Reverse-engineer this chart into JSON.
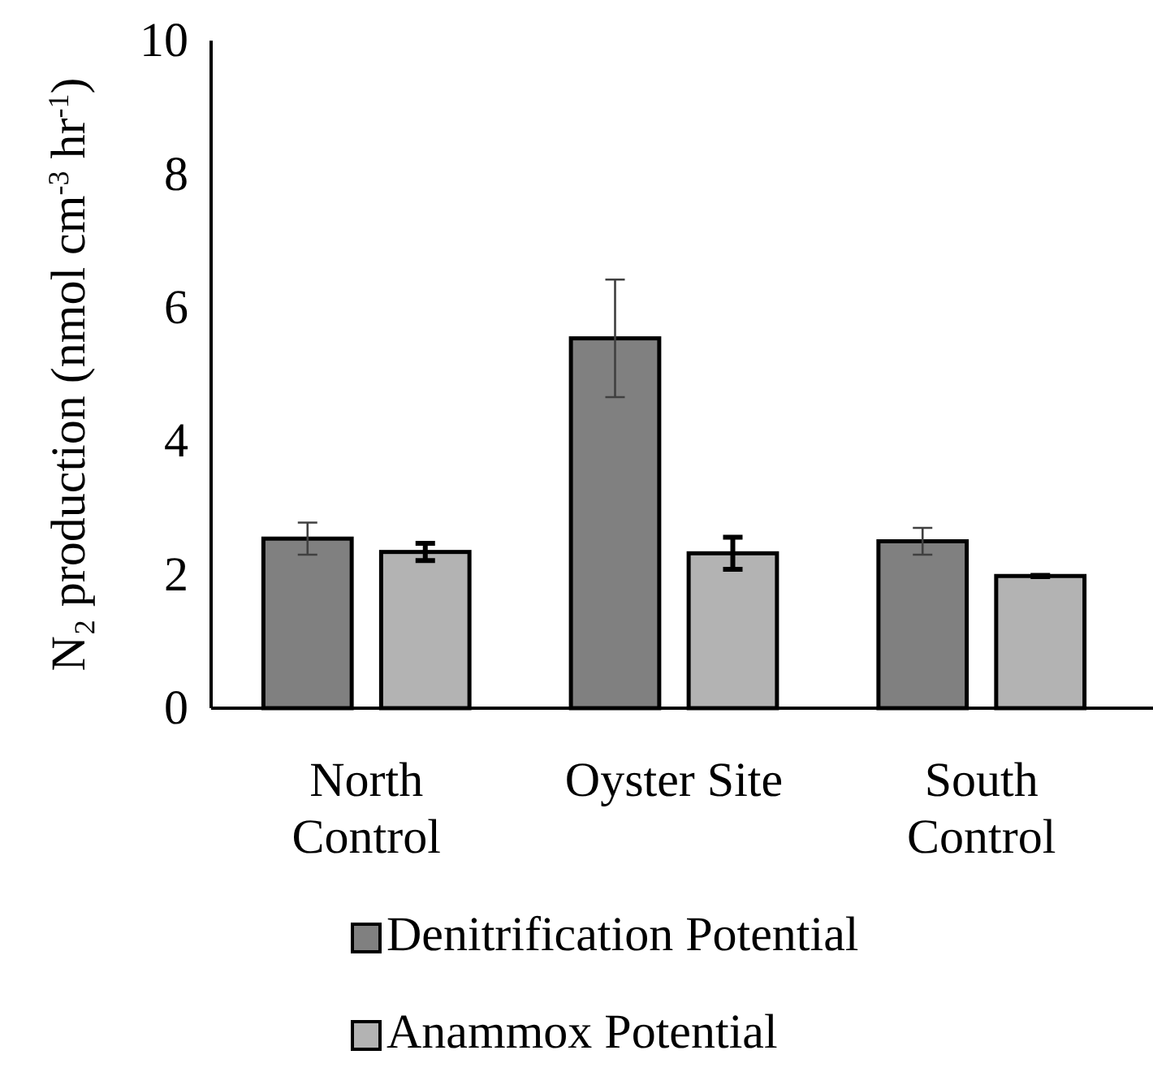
{
  "chart_data": {
    "type": "bar",
    "ylabel": "N₂ production (nmol cm$^{-3}$ hr$^{-1}$)",
    "categories": [
      "North Control",
      "Oyster Site",
      "South Control"
    ],
    "series": [
      {
        "name": "Denitrification Potential",
        "color": "#808080",
        "values": [
          2.54,
          5.54,
          2.5
        ],
        "errors": [
          0.24,
          0.88,
          0.2
        ]
      },
      {
        "name": "Anammox Potential",
        "color": "#b3b3b3",
        "values": [
          2.34,
          2.32,
          1.98
        ],
        "errors": [
          0.13,
          0.24,
          0.01
        ]
      }
    ],
    "ylim": [
      0,
      10
    ],
    "yticks": [
      0,
      2,
      4,
      6,
      8,
      10
    ],
    "grid": false,
    "legend": "bottom"
  }
}
